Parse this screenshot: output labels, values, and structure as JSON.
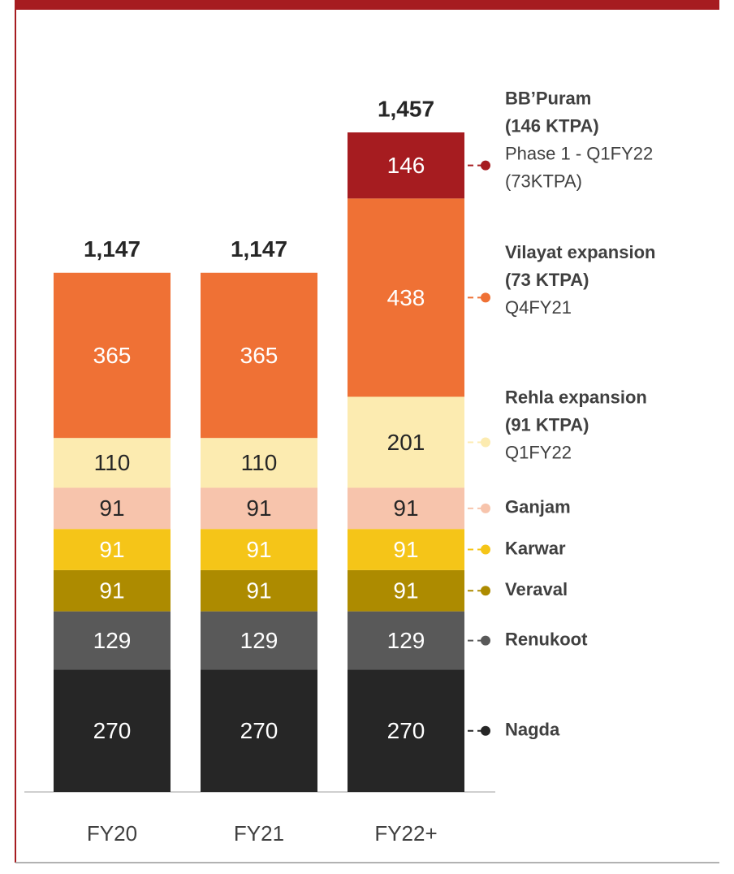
{
  "chart_data": {
    "type": "stacked_bar",
    "categories": [
      "FY20",
      "FY21",
      "FY22+"
    ],
    "series": [
      {
        "name": "Nagda",
        "color": "#262626",
        "values": [
          270,
          270,
          270
        ]
      },
      {
        "name": "Renukoot",
        "color": "#595959",
        "values": [
          129,
          129,
          129
        ]
      },
      {
        "name": "Veraval",
        "color": "#ad8b00",
        "values": [
          91,
          91,
          91
        ]
      },
      {
        "name": "Karwar",
        "color": "#f5c518",
        "values": [
          91,
          91,
          91
        ]
      },
      {
        "name": "Ganjam",
        "color": "#f7c4ac",
        "values": [
          91,
          91,
          91
        ]
      },
      {
        "name": "Rehla expansion",
        "detail": "(91 KTPA)",
        "notes": [
          "Q1FY22"
        ],
        "color": "#fcebb0",
        "values": [
          110,
          110,
          201
        ]
      },
      {
        "name": "Vilayat expansion",
        "detail": "(73 KTPA)",
        "notes": [
          "Q4FY21"
        ],
        "color": "#ef7135",
        "values": [
          365,
          365,
          438
        ]
      },
      {
        "name": "BB’Puram",
        "detail": "(146 KTPA)",
        "notes": [
          "Phase 1 - Q1FY22",
          "(73KTPA)"
        ],
        "color": "#a61c20",
        "values": [
          null,
          null,
          146
        ]
      }
    ],
    "totals": [
      1147,
      1147,
      1457
    ],
    "total_labels": [
      "1,147",
      "1,147",
      "1,457"
    ]
  }
}
